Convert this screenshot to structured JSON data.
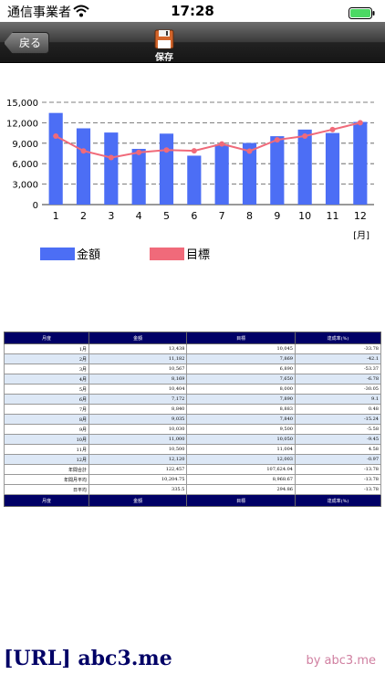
{
  "status_bar": {
    "carrier": "通信事業者",
    "time": "17:28"
  },
  "nav": {
    "back_label": "戻る",
    "save_label": "保存"
  },
  "chart_data": {
    "type": "bar",
    "categories": [
      "1",
      "2",
      "3",
      "4",
      "5",
      "6",
      "7",
      "8",
      "9",
      "10",
      "11",
      "12"
    ],
    "series": [
      {
        "name": "金額",
        "type": "bar",
        "color": "#4c6ef5",
        "values": [
          13438,
          11182,
          10567,
          8169,
          10404,
          7172,
          8840,
          9035,
          10030,
          11000,
          10500,
          12120
        ]
      },
      {
        "name": "目標",
        "type": "line",
        "color": "#f06a7a",
        "values": [
          10045,
          7869,
          6890,
          7650,
          8000,
          7890,
          8883,
          7840,
          9500,
          10050,
          11004,
          12003
        ]
      }
    ],
    "xlabel": "[月]",
    "ylim": [
      0,
      15000
    ],
    "yticks": [
      "0",
      "3,000",
      "6,000",
      "9,000",
      "12,000",
      "15,000"
    ],
    "grid": true,
    "legend": "bottom-left"
  },
  "table": {
    "headers": [
      "月度",
      "金額",
      "目標",
      "達成率(%)"
    ],
    "rows": [
      [
        "1月",
        "13,438",
        "10,045",
        "-33.78"
      ],
      [
        "2月",
        "11,182",
        "7,869",
        "-42.1"
      ],
      [
        "3月",
        "10,567",
        "6,890",
        "-53.37"
      ],
      [
        "4月",
        "8,169",
        "7,650",
        "-6.78"
      ],
      [
        "5月",
        "10,404",
        "8,000",
        "-30.05"
      ],
      [
        "6月",
        "7,172",
        "7,890",
        "9.1"
      ],
      [
        "7月",
        "8,840",
        "8,883",
        "0.48"
      ],
      [
        "8月",
        "9,035",
        "7,840",
        "-15.24"
      ],
      [
        "9月",
        "10,030",
        "9,500",
        "-5.58"
      ],
      [
        "10月",
        "11,000",
        "10,050",
        "-9.45"
      ],
      [
        "11月",
        "10,500",
        "11,004",
        "4.58"
      ],
      [
        "12月",
        "12,120",
        "12,003",
        "-0.97"
      ]
    ],
    "summary": [
      [
        "年間合計",
        "122,457",
        "107,624.04",
        "-13.78"
      ],
      [
        "年間月平均",
        "10,204.75",
        "8,968.67",
        "-13.78"
      ],
      [
        "日平均",
        "335.5",
        "294.86",
        "-13.78"
      ]
    ]
  },
  "footer": {
    "url_text": "[URL] abc3.me",
    "by_text": "by abc3.me"
  },
  "colors": {
    "bar": "#4c6ef5",
    "line": "#f06a7a",
    "header": "#000066",
    "row_alt": "#dde8f6"
  }
}
